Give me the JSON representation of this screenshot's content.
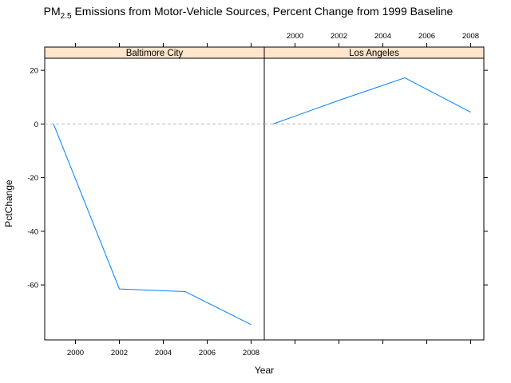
{
  "chart_data": {
    "type": "line",
    "title": {
      "prefix": "PM",
      "subscript": "2.5",
      "suffix": " Emissions from Motor-Vehicle Sources, Percent Change from 1999 Baseline"
    },
    "xlabel": "Year",
    "ylabel": "PctChange",
    "xlim": [
      1998.6,
      2008.6
    ],
    "ylim": [
      -80.5,
      24.5
    ],
    "x_ticks": [
      2000,
      2002,
      2004,
      2006,
      2008
    ],
    "y_ticks": [
      20,
      0,
      -20,
      -40,
      -60
    ],
    "reference_line": {
      "y": 0,
      "style": "dashed",
      "color": "#bbbbbb"
    },
    "line_color": "#0080ff",
    "strip_color": "#ffe5cc",
    "grid": false,
    "panels": [
      {
        "strip": "Baltimore City",
        "x": [
          1999,
          2002,
          2005,
          2008
        ],
        "y": [
          0,
          -61.5,
          -62.5,
          -74.8
        ]
      },
      {
        "strip": "Los Angeles",
        "x": [
          1999,
          2002,
          2005,
          2008
        ],
        "y": [
          0,
          8.8,
          17.2,
          4.4
        ]
      }
    ]
  }
}
